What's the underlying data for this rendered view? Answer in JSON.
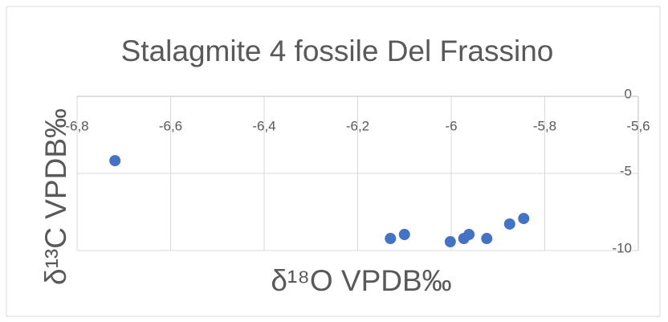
{
  "chart_data": {
    "type": "scatter",
    "title": "Stalagmite 4 fossile Del Frassino",
    "x_label": "δ¹⁸O VPDB‰",
    "y_label": "δ¹³C VPDB‰",
    "series": [
      {
        "name": "Stalagmite 4",
        "color": "#4472c4",
        "x": [
          -6.719,
          -6.13,
          -6.1,
          -6.002,
          -5.973,
          -5.962,
          -5.924,
          -5.875,
          -5.845
        ],
        "values": [
          -4.17,
          -9.22,
          -8.96,
          -9.43,
          -9.22,
          -8.96,
          -9.22,
          -8.28,
          -7.92
        ]
      }
    ],
    "xlim": [
      -6.8,
      -5.6
    ],
    "xticks": [
      {
        "value": -6.8,
        "label": "-6,8"
      },
      {
        "value": -6.6,
        "label": "-6,6"
      },
      {
        "value": -6.4,
        "label": "-6,4"
      },
      {
        "value": -6.2,
        "label": "-6,2"
      },
      -6,
      {
        "value": -5.8,
        "label": "-5,8"
      },
      {
        "value": -5.6,
        "label": "-5,6"
      }
    ],
    "ylim": [
      -10,
      0
    ],
    "yticks": [
      0,
      -5,
      -10
    ],
    "grid": true
  }
}
